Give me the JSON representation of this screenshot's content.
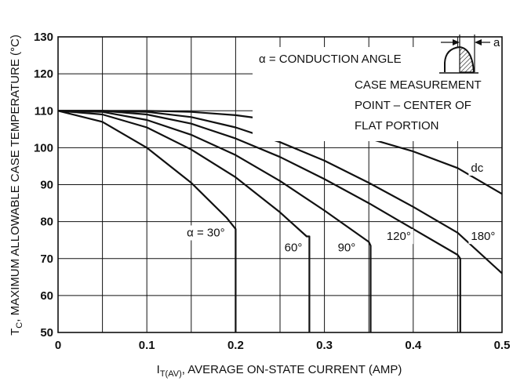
{
  "chart_data": {
    "type": "line",
    "title": "",
    "xlabel": "I",
    "xlabel_sub": "T(AV)",
    "xlabel_rest": ", AVERAGE ON-STATE CURRENT (AMP)",
    "ylabel": "T",
    "ylabel_sub": "C",
    "ylabel_rest": ", MAXIMUM ALLOWABLE CASE TEMPERATURE (°C)",
    "xlim": [
      0,
      0.5
    ],
    "ylim": [
      50,
      130
    ],
    "grid": true,
    "x_ticks": [
      "0",
      "0.1",
      "0.2",
      "0.3",
      "0.4",
      "0.5"
    ],
    "y_ticks": [
      "50",
      "60",
      "70",
      "80",
      "90",
      "100",
      "110",
      "120",
      "130"
    ],
    "series": [
      {
        "name": "α = 30°",
        "points": [
          [
            0,
            110
          ],
          [
            0.05,
            107
          ],
          [
            0.1,
            100
          ],
          [
            0.15,
            90.5
          ],
          [
            0.19,
            81
          ],
          [
            0.2,
            78
          ],
          [
            0.2,
            50
          ]
        ]
      },
      {
        "name": "60°",
        "points": [
          [
            0,
            110
          ],
          [
            0.05,
            109
          ],
          [
            0.1,
            105.5
          ],
          [
            0.15,
            99.5
          ],
          [
            0.2,
            92
          ],
          [
            0.25,
            82.5
          ],
          [
            0.28,
            76
          ],
          [
            0.283,
            76
          ],
          [
            0.283,
            50
          ]
        ]
      },
      {
        "name": "90°",
        "points": [
          [
            0,
            110
          ],
          [
            0.05,
            109.7
          ],
          [
            0.1,
            107.5
          ],
          [
            0.15,
            103.5
          ],
          [
            0.2,
            98
          ],
          [
            0.25,
            91
          ],
          [
            0.3,
            83
          ],
          [
            0.35,
            74.5
          ],
          [
            0.352,
            73.5
          ],
          [
            0.352,
            50
          ]
        ]
      },
      {
        "name": "120°",
        "points": [
          [
            0,
            110
          ],
          [
            0.05,
            110
          ],
          [
            0.1,
            109
          ],
          [
            0.15,
            106.5
          ],
          [
            0.2,
            102.5
          ],
          [
            0.25,
            97.5
          ],
          [
            0.3,
            91.5
          ],
          [
            0.35,
            85
          ],
          [
            0.4,
            78
          ],
          [
            0.45,
            71
          ],
          [
            0.453,
            70
          ],
          [
            0.453,
            50
          ]
        ]
      },
      {
        "name": "180°",
        "points": [
          [
            0,
            110
          ],
          [
            0.05,
            110
          ],
          [
            0.1,
            109.7
          ],
          [
            0.15,
            108.3
          ],
          [
            0.2,
            105.5
          ],
          [
            0.25,
            101.5
          ],
          [
            0.3,
            96.5
          ],
          [
            0.35,
            90.5
          ],
          [
            0.4,
            84
          ],
          [
            0.45,
            77
          ],
          [
            0.5,
            66
          ]
        ]
      },
      {
        "name": "dc",
        "points": [
          [
            0,
            110
          ],
          [
            0.1,
            110
          ],
          [
            0.15,
            109.7
          ],
          [
            0.2,
            108.8
          ],
          [
            0.25,
            107.2
          ],
          [
            0.3,
            105
          ],
          [
            0.35,
            102.5
          ],
          [
            0.4,
            99
          ],
          [
            0.45,
            94.5
          ],
          [
            0.5,
            87.5
          ]
        ]
      }
    ],
    "series_labels": [
      {
        "text": "α = 30°",
        "x": 0.145,
        "y": 76
      },
      {
        "text": "60°",
        "x": 0.255,
        "y": 72
      },
      {
        "text": "90°",
        "x": 0.315,
        "y": 72
      },
      {
        "text": "120°",
        "x": 0.37,
        "y": 75
      },
      {
        "text": "180°",
        "x": 0.465,
        "y": 75
      },
      {
        "text": "dc",
        "x": 0.465,
        "y": 93.5
      }
    ],
    "annotations": {
      "conduction": "α = CONDUCTION ANGLE",
      "a_label": "a",
      "case_line1": "CASE MEASUREMENT",
      "case_line2": "POINT – CENTER OF",
      "case_line3": "FLAT PORTION"
    }
  }
}
